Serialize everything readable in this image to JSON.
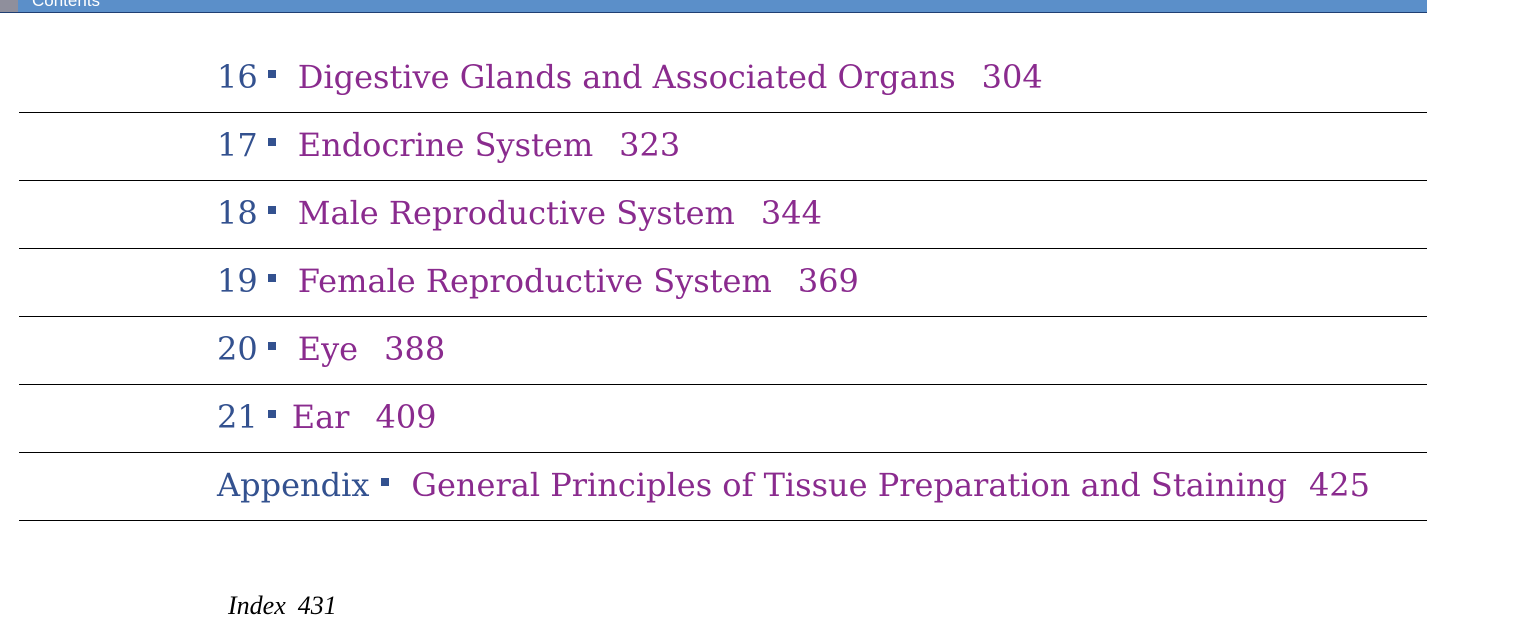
{
  "header": {
    "label": "Contents"
  },
  "colors": {
    "header_bar": "#5b8fc9",
    "chapter_number": "#33518f",
    "chapter_title": "#8a2b8e"
  },
  "toc": [
    {
      "number": "16",
      "title": "Digestive Glands and Associated Organs",
      "page": "304"
    },
    {
      "number": "17",
      "title": "Endocrine System",
      "page": "323"
    },
    {
      "number": "18",
      "title": "Male Reproductive System",
      "page": "344"
    },
    {
      "number": "19",
      "title": "Female Reproductive System",
      "page": "369"
    },
    {
      "number": "20",
      "title": "Eye",
      "page": "388"
    },
    {
      "number": "21",
      "title": "Ear",
      "page": "409"
    },
    {
      "number": "Appendix",
      "title": "General Principles of Tissue Preparation and Staining",
      "page": "425"
    }
  ],
  "index": {
    "label": "Index",
    "page": "431"
  }
}
